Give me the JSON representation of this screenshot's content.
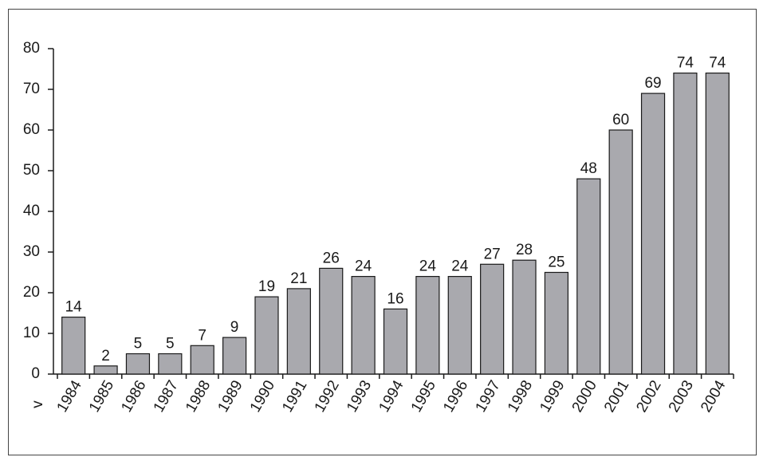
{
  "chart_data": {
    "type": "bar",
    "title": "",
    "xlabel": "",
    "ylabel": "",
    "axis_marker": "v",
    "categories": [
      "1984",
      "1985",
      "1986",
      "1987",
      "1988",
      "1989",
      "1990",
      "1991",
      "1992",
      "1993",
      "1994",
      "1995",
      "1996",
      "1997",
      "1998",
      "1999",
      "2000",
      "2001",
      "2002",
      "2003",
      "2004"
    ],
    "values": [
      14,
      2,
      5,
      5,
      7,
      9,
      19,
      21,
      26,
      24,
      16,
      24,
      24,
      27,
      28,
      25,
      48,
      60,
      69,
      74,
      74
    ],
    "ylim": [
      0,
      80
    ],
    "yticks": [
      0,
      10,
      20,
      30,
      40,
      50,
      60,
      70,
      80
    ],
    "grid": false,
    "data_labels": true,
    "colors": {
      "bar_fill": "#a9a9ae",
      "bar_stroke": "#1a1a1a",
      "axis": "#1a1a1a",
      "frame": "#444444"
    }
  }
}
